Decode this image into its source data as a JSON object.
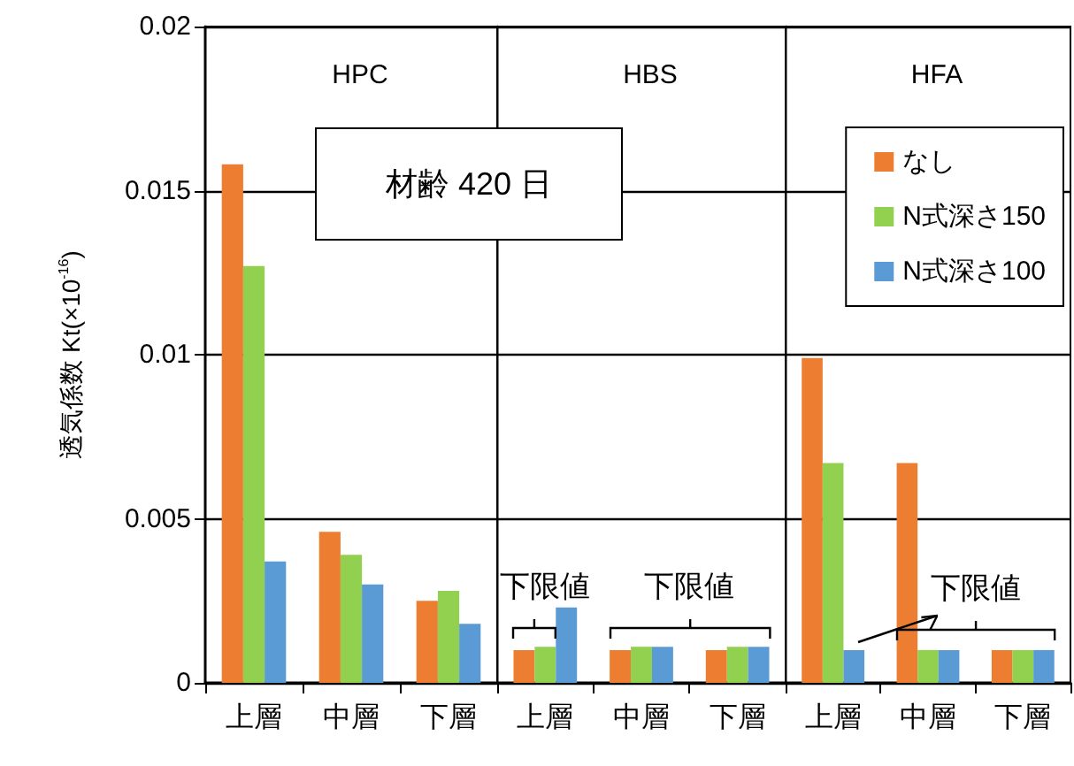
{
  "chart_data": [
    {
      "type": "bar",
      "title": "HPC",
      "ylabel": "透気係数 Kt(×10$^{-16}$)",
      "categories": [
        "上層",
        "中層",
        "下層"
      ],
      "series": [
        {
          "color": "#ed7d31",
          "values": [
            0.0158,
            0.0046,
            0.0025
          ]
        },
        {
          "color": "#92d050",
          "values": [
            0.0127,
            0.0039,
            0.0028
          ]
        },
        {
          "color": "#5b9bd5",
          "values": [
            0.0037,
            0.003,
            0.0018
          ]
        }
      ],
      "ylim": [
        0,
        0.02
      ],
      "yticks": [
        0,
        0.005,
        0.01,
        0.015,
        0.02
      ],
      "grid": "y",
      "annotations": [
        "材齢 420 日"
      ]
    },
    {
      "type": "bar",
      "title": "HBS",
      "categories": [
        "上層",
        "中層",
        "下層"
      ],
      "series": [
        {
          "color": "#ed7d31",
          "values": [
            0.001,
            0.001,
            0.001
          ]
        },
        {
          "color": "#92d050",
          "values": [
            0.0011,
            0.0011,
            0.0011
          ]
        },
        {
          "color": "#5b9bd5",
          "values": [
            0.0023,
            0.0011,
            0.0011
          ]
        }
      ],
      "ylim": [
        0,
        0.02
      ],
      "yticks": [
        0,
        0.005,
        0.01,
        0.015,
        0.02
      ],
      "grid": "y",
      "tick_labels": "x",
      "annotations": [
        {
          "text": "下限値",
          "x": "上層",
          "y": 0.0011
        },
        {
          "text": "下限値",
          "x": "中層",
          "y": 0.0011
        }
      ]
    },
    {
      "type": "bar",
      "title": "HFA",
      "categories": [
        "上層",
        "中層",
        "下層"
      ],
      "series": [
        {
          "name": "なし",
          "color": "#ed7d31",
          "values": [
            0.0099,
            0.0067,
            0.001
          ]
        },
        {
          "name": "N式深さ150",
          "color": "#92d050",
          "values": [
            0.0067,
            0.001,
            0.001
          ]
        },
        {
          "name": "N式深さ100",
          "color": "#5b9bd5",
          "values": [
            0.001,
            0.001,
            0.001
          ]
        }
      ],
      "ylim": [
        0,
        0.02
      ],
      "yticks": [
        0,
        0.005,
        0.01,
        0.015,
        0.02
      ],
      "grid": "y",
      "tick_labels": "x",
      "legend": "top right",
      "annotations": [
        {
          "text": "下限値",
          "x": "中層",
          "y": 0.001
        }
      ]
    }
  ]
}
